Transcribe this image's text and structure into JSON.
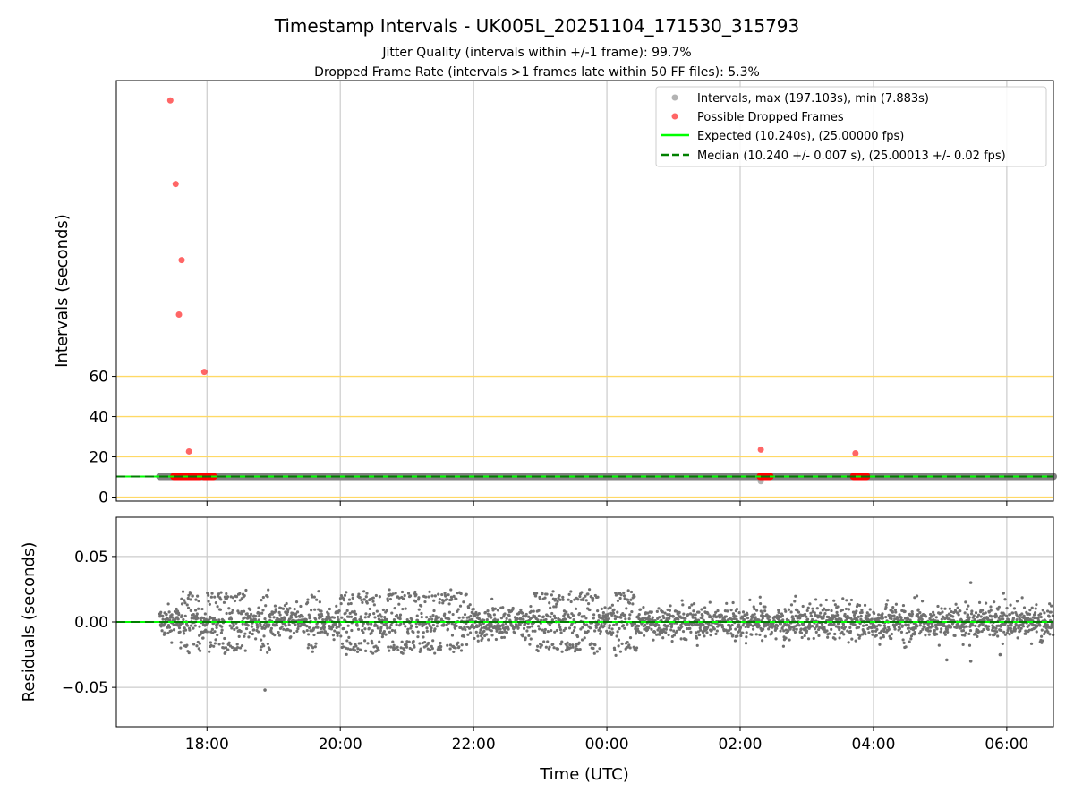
{
  "chart_data": [
    {
      "type": "scatter",
      "title": "Timestamp Intervals - UK005L_20251104_171530_315793",
      "subtitle_1": "Jitter Quality (intervals within +/-1 frame): 99.7%",
      "subtitle_2": "Dropped Frame Rate (intervals >1 frames late within 50 FF files): 5.3%",
      "ylabel": "Intervals (seconds)",
      "x_units": "hours since 2025-11-04 00:00 UTC",
      "xlim": [
        16.64,
        30.7
      ],
      "ylim": [
        -2,
        207
      ],
      "yticks": [
        0,
        20,
        40,
        60
      ],
      "ytick_labels": [
        "0",
        "20",
        "40",
        "60"
      ],
      "hlines_orange": [
        0,
        20,
        40,
        60
      ],
      "xticks": [
        18,
        20,
        22,
        24,
        26,
        28,
        30
      ],
      "grid": "vertical",
      "legend": {
        "placement": "top-right",
        "entries": [
          "Intervals, max (197.103s), min (7.883s)",
          "Possible Dropped Frames",
          "Expected (10.240s), (25.00000 fps)",
          "Median (10.240 +/- 0.007 s), (25.00013 +/- 0.02 fps)"
        ]
      },
      "intervals": {
        "start": 17.29,
        "end": 30.7,
        "value": 10.24,
        "min": 7.883,
        "max": 197.103,
        "min_at": 26.31
      },
      "expected": 10.24,
      "median": 10.24,
      "dropped_frames": [
        {
          "x": 17.45,
          "y": 197.1
        },
        {
          "x": 17.53,
          "y": 155.6
        },
        {
          "x": 17.62,
          "y": 117.8
        },
        {
          "x": 17.58,
          "y": 90.7
        },
        {
          "x": 17.96,
          "y": 62.2
        },
        {
          "x": 17.73,
          "y": 22.7
        },
        {
          "x": 26.31,
          "y": 23.6
        },
        {
          "x": 27.73,
          "y": 21.8
        }
      ],
      "dropped_clusters": [
        [
          17.5,
          17.9,
          10.24
        ],
        [
          17.95,
          18.1,
          10.24
        ],
        [
          26.3,
          26.45,
          10.24
        ],
        [
          27.7,
          27.9,
          10.24
        ]
      ],
      "colors": {
        "intervals": "#808080",
        "dropped": "#ff0000",
        "expected": "#00ff00",
        "median": "#008000",
        "hline": "#ffd966"
      }
    },
    {
      "type": "scatter",
      "ylabel": "Residuals (seconds)",
      "xlabel": "Time (UTC)",
      "xlim": [
        16.64,
        30.7
      ],
      "ylim": [
        -0.08,
        0.08
      ],
      "yticks": [
        0.05,
        0.0,
        -0.05
      ],
      "ytick_labels": [
        "0.05",
        "0.00",
        "−0.05"
      ],
      "xticks": [
        18,
        20,
        22,
        24,
        26,
        28,
        30
      ],
      "xtick_labels": [
        "18:00",
        "20:00",
        "22:00",
        "00:00",
        "02:00",
        "04:00",
        "06:00"
      ],
      "grid": "both",
      "residuals": {
        "start": 17.29,
        "end": 30.7,
        "core_spread": 0.006,
        "band_level": 0.019,
        "band_ranges": [
          [
            17.6,
            17.9
          ],
          [
            18.0,
            18.6
          ],
          [
            18.8,
            18.95
          ],
          [
            19.5,
            19.7
          ],
          [
            20.0,
            20.6
          ],
          [
            20.7,
            21.9
          ],
          [
            22.9,
            23.9
          ],
          [
            24.1,
            24.45
          ]
        ],
        "outliers": [
          {
            "x": 18.87,
            "y": -0.052
          },
          {
            "x": 29.46,
            "y": 0.03
          },
          {
            "x": 29.46,
            "y": -0.03
          },
          {
            "x": 29.1,
            "y": -0.029
          },
          {
            "x": 29.9,
            "y": -0.025
          },
          {
            "x": 29.95,
            "y": 0.022
          }
        ]
      },
      "expected": 0,
      "median": 0
    }
  ]
}
